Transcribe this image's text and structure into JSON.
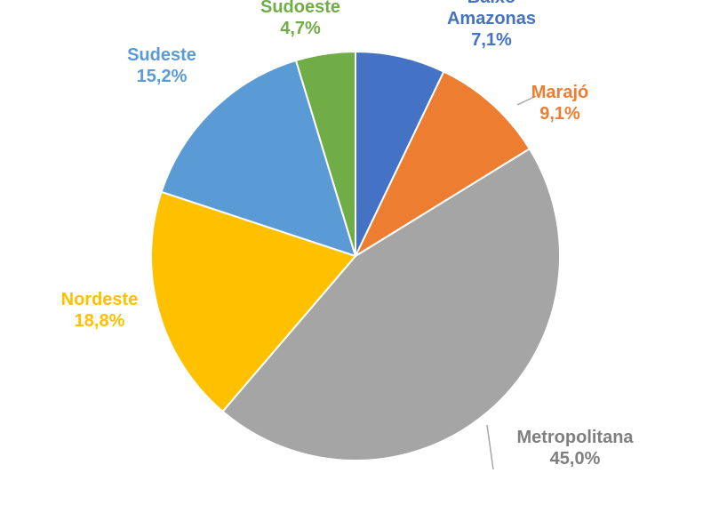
{
  "chart_data": {
    "type": "pie",
    "start_angle_deg": 0,
    "direction": "clockwise",
    "slices": [
      {
        "name": "Baixo Amazonas",
        "name_lines": [
          "Baixo",
          "Amazonas"
        ],
        "value": 7.1,
        "value_label": "7,1%",
        "color": "#4472C4"
      },
      {
        "name": "Marajó",
        "name_lines": [
          "Marajó"
        ],
        "value": 9.1,
        "value_label": "9,1%",
        "color": "#ED7D31"
      },
      {
        "name": "Metropolitana",
        "name_lines": [
          "Metropolitana"
        ],
        "value": 45.0,
        "value_label": "45,0%",
        "color": "#A5A5A5"
      },
      {
        "name": "Nordeste",
        "name_lines": [
          "Nordeste"
        ],
        "value": 18.8,
        "value_label": "18,8%",
        "color": "#FFC000"
      },
      {
        "name": "Sudeste",
        "name_lines": [
          "Sudeste"
        ],
        "value": 15.2,
        "value_label": "15,2%",
        "color": "#5B9BD5"
      },
      {
        "name": "Sudoeste",
        "name_lines": [
          "Sudoeste"
        ],
        "value": 4.7,
        "value_label": "4,7%",
        "color": "#70AD47"
      }
    ],
    "legend": "none",
    "label_color": "#7F7F7F"
  }
}
